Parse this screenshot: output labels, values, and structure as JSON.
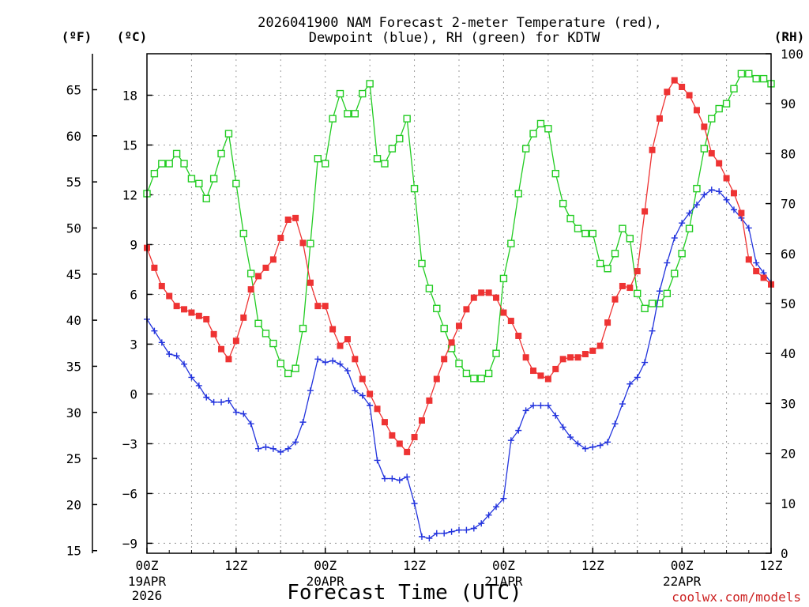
{
  "chart_data": {
    "type": "line",
    "title_line1": "2026041900 NAM Forecast 2-meter Temperature (red),",
    "title_line2": "Dewpoint (blue), RH (green) for KDTW",
    "xlabel": "Forecast Time (UTC)",
    "unit_f": "(ºF)",
    "unit_c": "(ºC)",
    "unit_rh": "(RH)",
    "credit": "coolwx.com/models",
    "x_range_hours": [
      0,
      84
    ],
    "ylim_c": [
      -9.6,
      20.5
    ],
    "ylim_rh": [
      0,
      100
    ],
    "x_ticks": [
      {
        "hour": 0,
        "label": "00Z",
        "date": "19APR",
        "year": "2026"
      },
      {
        "hour": 12,
        "label": "12Z"
      },
      {
        "hour": 24,
        "label": "00Z",
        "date": "20APR"
      },
      {
        "hour": 36,
        "label": "12Z"
      },
      {
        "hour": 48,
        "label": "00Z",
        "date": "21APR"
      },
      {
        "hour": 60,
        "label": "12Z"
      },
      {
        "hour": 72,
        "label": "00Z",
        "date": "22APR"
      },
      {
        "hour": 84,
        "label": "12Z"
      }
    ],
    "c_ticks": [
      -9,
      -6,
      -3,
      0,
      3,
      6,
      9,
      12,
      15,
      18
    ],
    "f_ticks": [
      15,
      20,
      25,
      30,
      35,
      40,
      45,
      50,
      55,
      60,
      65
    ],
    "rh_ticks": [
      0,
      10,
      20,
      30,
      40,
      50,
      60,
      70,
      80,
      90,
      100
    ],
    "x_hours": [
      0,
      1,
      2,
      3,
      4,
      5,
      6,
      7,
      8,
      9,
      10,
      11,
      12,
      13,
      14,
      15,
      16,
      17,
      18,
      19,
      20,
      21,
      22,
      23,
      24,
      25,
      26,
      27,
      28,
      29,
      30,
      31,
      32,
      33,
      34,
      35,
      36,
      37,
      38,
      39,
      40,
      41,
      42,
      43,
      44,
      45,
      46,
      47,
      48,
      49,
      50,
      51,
      52,
      53,
      54,
      55,
      56,
      57,
      58,
      59,
      60,
      61,
      62,
      63,
      64,
      65,
      66,
      67,
      68,
      69,
      70,
      71,
      72,
      73,
      74,
      75,
      76,
      77,
      78,
      79,
      80,
      81,
      82,
      83,
      84
    ],
    "series": [
      {
        "name": "Temperature",
        "axis": "c",
        "color": "#ee3333",
        "marker": "filled-square",
        "values": [
          8.8,
          7.6,
          6.5,
          5.9,
          5.3,
          5.1,
          4.9,
          4.7,
          4.5,
          3.6,
          2.7,
          2.1,
          3.2,
          4.6,
          6.3,
          7.1,
          7.6,
          8.1,
          9.4,
          10.5,
          10.6,
          9.1,
          6.7,
          5.3,
          5.3,
          3.9,
          2.9,
          3.3,
          2.1,
          0.9,
          0.0,
          -0.9,
          -1.7,
          -2.5,
          -3.0,
          -3.5,
          -2.6,
          -1.6,
          -0.4,
          0.9,
          2.1,
          3.1,
          4.1,
          5.1,
          5.8,
          6.1,
          6.1,
          5.8,
          4.9,
          4.4,
          3.5,
          2.2,
          1.4,
          1.1,
          0.9,
          1.5,
          2.1,
          2.2,
          2.2,
          2.4,
          2.6,
          2.9,
          4.3,
          5.7,
          6.5,
          6.4,
          7.4,
          11.0,
          14.7,
          16.6,
          18.2,
          18.9,
          18.5,
          18.0,
          17.1,
          16.1,
          14.5,
          13.9,
          13.0,
          12.1,
          10.9,
          8.1,
          7.4,
          7.0,
          6.6
        ]
      },
      {
        "name": "Dewpoint",
        "axis": "c",
        "color": "#2233dd",
        "marker": "plus",
        "values": [
          4.5,
          3.8,
          3.1,
          2.4,
          2.3,
          1.8,
          1.0,
          0.5,
          -0.2,
          -0.5,
          -0.5,
          -0.4,
          -1.1,
          -1.2,
          -1.8,
          -3.3,
          -3.2,
          -3.3,
          -3.5,
          -3.3,
          -2.9,
          -1.7,
          0.2,
          2.1,
          1.9,
          2.0,
          1.8,
          1.4,
          0.2,
          -0.1,
          -0.7,
          -4.0,
          -5.1,
          -5.1,
          -5.2,
          -5.0,
          -6.6,
          -8.6,
          -8.7,
          -8.4,
          -8.4,
          -8.3,
          -8.2,
          -8.2,
          -8.1,
          -7.8,
          -7.3,
          -6.8,
          -6.3,
          -2.8,
          -2.2,
          -1.0,
          -0.7,
          -0.7,
          -0.7,
          -1.3,
          -2.0,
          -2.6,
          -3.0,
          -3.3,
          -3.2,
          -3.1,
          -2.9,
          -1.8,
          -0.6,
          0.6,
          1.0,
          1.9,
          3.8,
          6.2,
          7.9,
          9.4,
          10.3,
          10.9,
          11.4,
          12.0,
          12.3,
          12.2,
          11.7,
          11.1,
          10.6,
          10.0,
          7.9,
          7.3,
          6.7
        ]
      },
      {
        "name": "RH",
        "axis": "rh",
        "color": "#22cc22",
        "marker": "open-square",
        "values": [
          72,
          76,
          78,
          78,
          80,
          78,
          75,
          74,
          71,
          75,
          80,
          84,
          74,
          64,
          56,
          46,
          44,
          42,
          38,
          36,
          37,
          45,
          62,
          79,
          78,
          87,
          92,
          88,
          88,
          92,
          94,
          79,
          78,
          81,
          83,
          87,
          73,
          58,
          53,
          49,
          45,
          41,
          38,
          36,
          35,
          35,
          36,
          40,
          55,
          62,
          72,
          81,
          84,
          86,
          85,
          76,
          70,
          67,
          65,
          64,
          64,
          58,
          57,
          60,
          65,
          63,
          52,
          49,
          50,
          50,
          52,
          56,
          60,
          65,
          73,
          81,
          87,
          89,
          90,
          93,
          96,
          96,
          95,
          95,
          94
        ]
      }
    ]
  }
}
